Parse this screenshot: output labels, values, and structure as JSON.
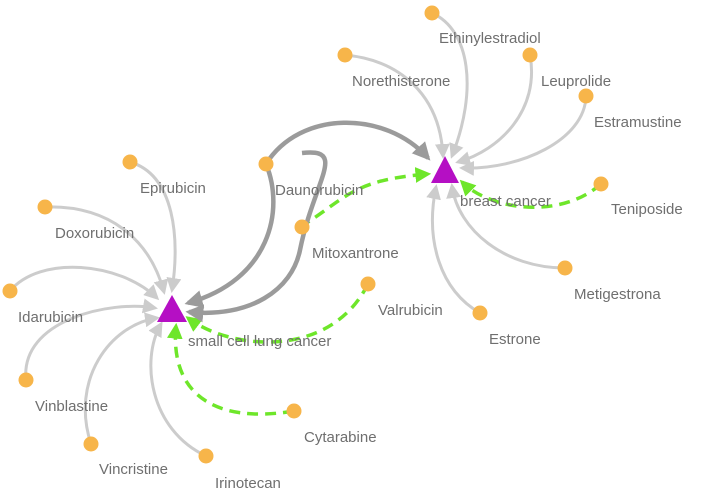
{
  "diseases": [
    {
      "id": "breast",
      "label": "breast cancer"
    },
    {
      "id": "sclc",
      "label": "small cell lung cancer"
    }
  ],
  "drugs": [
    {
      "id": "ethinylestradiol",
      "label": "Ethinylestradiol"
    },
    {
      "id": "norethisterone",
      "label": "Norethisterone"
    },
    {
      "id": "leuprolide",
      "label": "Leuprolide"
    },
    {
      "id": "estramustine",
      "label": "Estramustine"
    },
    {
      "id": "teniposide",
      "label": "Teniposide"
    },
    {
      "id": "metigestrona",
      "label": "Metigestrona"
    },
    {
      "id": "estrone",
      "label": "Estrone"
    },
    {
      "id": "valrubicin",
      "label": "Valrubicin"
    },
    {
      "id": "mitoxantrone",
      "label": "Mitoxantrone"
    },
    {
      "id": "daunorubicin",
      "label": "Daunorubicin"
    },
    {
      "id": "epirubicin",
      "label": "Epirubicin"
    },
    {
      "id": "doxorubicin",
      "label": "Doxorubicin"
    },
    {
      "id": "idarubicin",
      "label": "Idarubicin"
    },
    {
      "id": "vinblastine",
      "label": "Vinblastine"
    },
    {
      "id": "vincristine",
      "label": "Vincristine"
    },
    {
      "id": "irinotecan",
      "label": "Irinotecan"
    },
    {
      "id": "cytarabine",
      "label": "Cytarabine"
    }
  ],
  "edges": [
    {
      "from": "ethinylestradiol",
      "to": "breast",
      "style": "known"
    },
    {
      "from": "norethisterone",
      "to": "breast",
      "style": "known"
    },
    {
      "from": "leuprolide",
      "to": "breast",
      "style": "known"
    },
    {
      "from": "estramustine",
      "to": "breast",
      "style": "known"
    },
    {
      "from": "metigestrona",
      "to": "breast",
      "style": "known"
    },
    {
      "from": "estrone",
      "to": "breast",
      "style": "known"
    },
    {
      "from": "valrubicin",
      "to": "breast",
      "style": "known"
    },
    {
      "from": "teniposide",
      "to": "breast",
      "style": "predicted"
    },
    {
      "from": "mitoxantrone",
      "to": "breast",
      "style": "predicted"
    },
    {
      "from": "daunorubicin",
      "to": "breast",
      "style": "shared"
    },
    {
      "from": "mitoxantrone",
      "to": "sclc",
      "style": "shared"
    },
    {
      "from": "daunorubicin",
      "to": "sclc",
      "style": "shared"
    },
    {
      "from": "epirubicin",
      "to": "sclc",
      "style": "known"
    },
    {
      "from": "doxorubicin",
      "to": "sclc",
      "style": "known"
    },
    {
      "from": "idarubicin",
      "to": "sclc",
      "style": "known"
    },
    {
      "from": "vinblastine",
      "to": "sclc",
      "style": "known"
    },
    {
      "from": "vincristine",
      "to": "sclc",
      "style": "known"
    },
    {
      "from": "irinotecan",
      "to": "sclc",
      "style": "known"
    },
    {
      "from": "valrubicin",
      "to": "sclc",
      "style": "predicted"
    },
    {
      "from": "cytarabine",
      "to": "sclc",
      "style": "predicted"
    }
  ],
  "colors": {
    "drug_node": "#f7b54a",
    "disease_node": "#b50fc4",
    "known_edge": "#cccccc",
    "shared_edge": "#9b9b9b",
    "predicted_edge": "#6ee62a",
    "label_text": "#6f6f6f"
  }
}
